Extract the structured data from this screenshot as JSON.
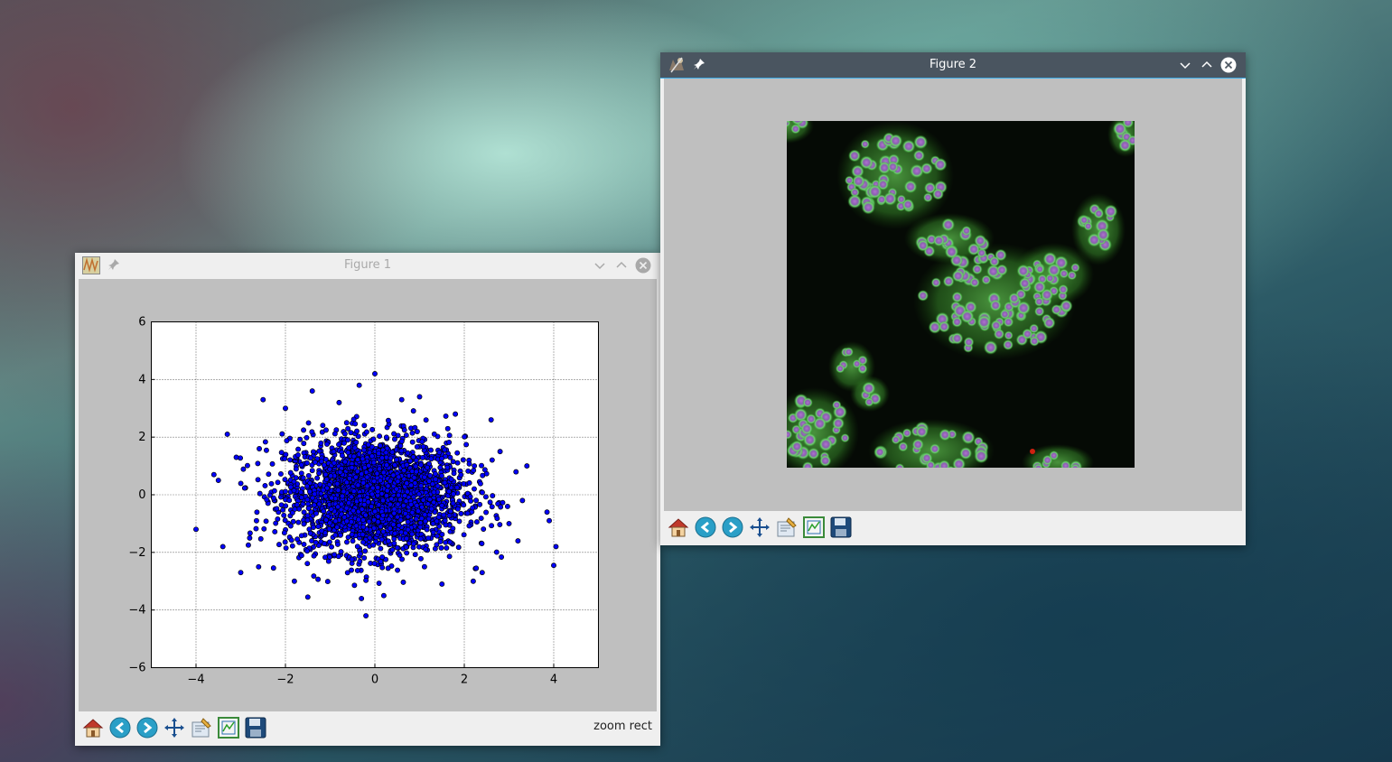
{
  "figure1": {
    "title": "Figure 1",
    "status": "zoom rect",
    "toolbar": [
      "home-icon",
      "back-icon",
      "forward-icon",
      "pan-icon",
      "configure-subplots-icon",
      "edit-axes-icon",
      "save-icon"
    ]
  },
  "figure2": {
    "title": "Figure 2",
    "toolbar": [
      "home-icon",
      "back-icon",
      "forward-icon",
      "pan-icon",
      "configure-subplots-icon",
      "edit-axes-icon",
      "save-icon"
    ]
  },
  "colors": {
    "accent": "#3daee9",
    "marker": "#0000ff",
    "plot_bg": "#bfbfbf"
  },
  "chart_data": {
    "type": "scatter",
    "title": "",
    "xlabel": "",
    "ylabel": "",
    "xlim": [
      -5,
      5
    ],
    "ylim": [
      -6,
      6
    ],
    "xticks": [
      -4,
      -2,
      0,
      2,
      4
    ],
    "yticks": [
      -6,
      -4,
      -2,
      0,
      2,
      4,
      6
    ],
    "xtick_labels": [
      "−4",
      "−2",
      "0",
      "2",
      "4"
    ],
    "ytick_labels": [
      "−6",
      "−4",
      "−2",
      "0",
      "2",
      "4",
      "6"
    ],
    "grid": true,
    "marker_color": "#0000ff",
    "distribution": "bivariate normal, mean 0, std 1 (dense cloud)",
    "points": [
      [
        -4.0,
        -1.2
      ],
      [
        4.05,
        -1.8
      ],
      [
        4.0,
        -2.45
      ],
      [
        -0.2,
        -4.2
      ],
      [
        0.0,
        4.2
      ],
      [
        -0.35,
        3.8
      ],
      [
        3.85,
        -0.6
      ],
      [
        3.9,
        -0.9
      ],
      [
        -3.3,
        2.1
      ],
      [
        -2.5,
        3.3
      ],
      [
        -1.4,
        3.6
      ],
      [
        3.2,
        -1.6
      ],
      [
        2.4,
        -2.7
      ],
      [
        -3.0,
        -2.7
      ],
      [
        -1.5,
        -3.55
      ],
      [
        2.2,
        -3.0
      ],
      [
        -3.4,
        -1.8
      ],
      [
        3.4,
        1.0
      ],
      [
        3.0,
        -1.0
      ],
      [
        -3.5,
        0.5
      ],
      [
        -3.6,
        0.7
      ],
      [
        -0.3,
        -3.6
      ],
      [
        0.2,
        -3.5
      ],
      [
        1.0,
        3.4
      ],
      [
        2.6,
        2.6
      ],
      [
        -2.0,
        3.0
      ],
      [
        -3.1,
        1.3
      ],
      [
        3.3,
        -0.2
      ],
      [
        -2.8,
        -1.5
      ],
      [
        1.8,
        2.8
      ],
      [
        -0.8,
        3.2
      ],
      [
        0.6,
        3.3
      ],
      [
        -2.6,
        -2.5
      ],
      [
        2.8,
        1.5
      ],
      [
        -1.8,
        -3.0
      ],
      [
        1.5,
        -3.1
      ]
    ]
  }
}
